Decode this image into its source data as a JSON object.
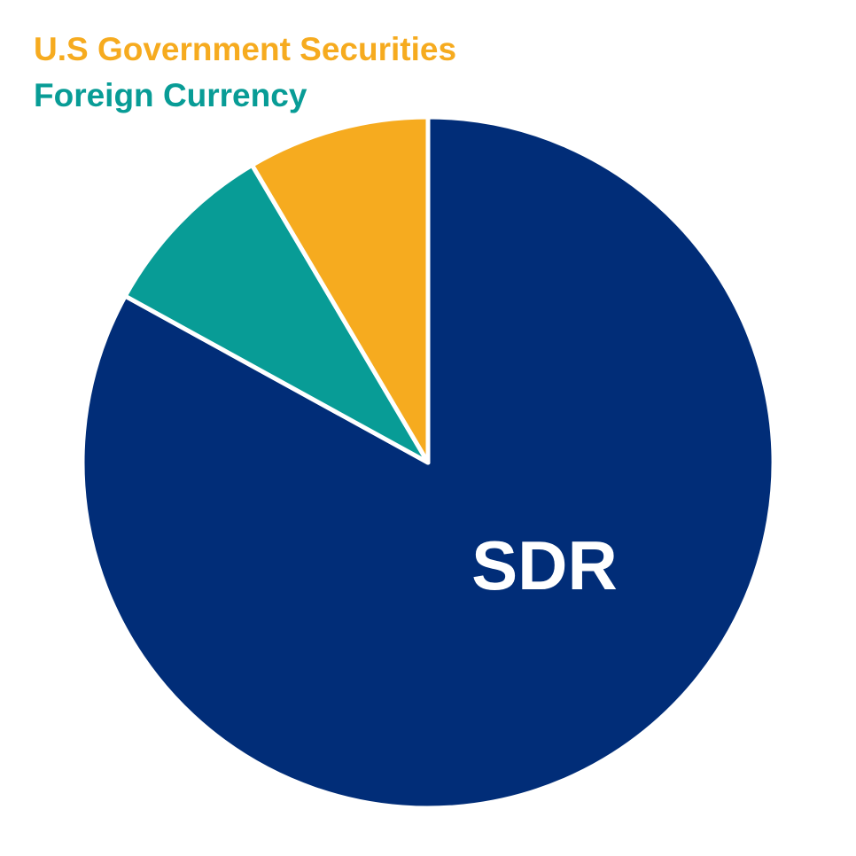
{
  "chart_data": {
    "type": "pie",
    "start_angle_deg": 0,
    "direction": "clockwise",
    "slices": [
      {
        "label": "SDR",
        "value": 83,
        "color": "#012d78",
        "show_label_on_slice": true
      },
      {
        "label": "Foreign Currency",
        "value": 8.5,
        "color": "#089c96",
        "show_label_on_slice": false
      },
      {
        "label": "U.S Government Securities",
        "value": 8.5,
        "color": "#f6ab1f",
        "show_label_on_slice": false
      }
    ],
    "legend": [
      {
        "label": "U.S Government Securities",
        "color": "#f6ab1f"
      },
      {
        "label": "Foreign Currency",
        "color": "#089c96"
      }
    ],
    "legend_position": "top-left",
    "slice_label_color": "#ffffff",
    "separator_color": "#ffffff"
  }
}
